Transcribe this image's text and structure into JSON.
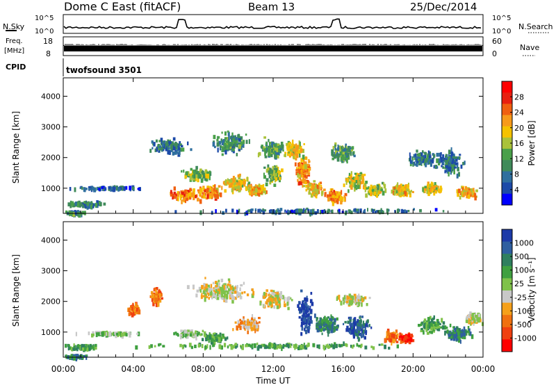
{
  "header": {
    "station": "Dome C East (fitACF)",
    "beam": "Beam 13",
    "date": "25/Dec/2014"
  },
  "panels": {
    "nsky": {
      "label": "N.Sky",
      "ticks": [
        "10^5",
        "10^0"
      ]
    },
    "nsearch": {
      "label": "N.Search",
      "ticks": [
        "10^5",
        "10^0"
      ]
    },
    "freq": {
      "label": "Freq.",
      "unit": "[MHz]",
      "ticks": [
        "18",
        "8"
      ]
    },
    "nave": {
      "label": "Nave",
      "ticks": [
        "60",
        "0"
      ]
    },
    "cpid": {
      "label": "CPID",
      "value": "twofsound 3501"
    }
  },
  "colors": {
    "power": [
      "#0000ff",
      "#1c4aa8",
      "#2f6f9e",
      "#3f8a5a",
      "#4aa04a",
      "#aac23a",
      "#f5c200",
      "#f79a1a",
      "#f06010",
      "#e82010",
      "#ff0000"
    ],
    "velocity": [
      "#ff0000",
      "#f04010",
      "#f07010",
      "#f5a01a",
      "#c8c8c8",
      "#7fc24a",
      "#3fa040",
      "#2f7f5f",
      "#2f5fa0",
      "#1c3aa8"
    ]
  },
  "chart_data": [
    {
      "type": "heatmap",
      "title": "Power",
      "xlabel": "",
      "ylabel": "Slant Range [km]",
      "xlim": [
        0,
        24
      ],
      "ylim": [
        180,
        4600
      ],
      "yticks": [
        "1000",
        "2000",
        "3000",
        "4000"
      ],
      "colorbar": {
        "label": "Power [dB]",
        "ticks": [
          "4",
          "8",
          "12",
          "16",
          "20",
          "24",
          "28"
        ],
        "range": [
          0,
          32
        ]
      },
      "blobs": [
        {
          "t": 1.3,
          "r": 520,
          "dt": 1.3,
          "dr": 110,
          "v": 9
        },
        {
          "t": 0.6,
          "r": 240,
          "dt": 0.7,
          "dr": 70,
          "v": 10
        },
        {
          "t": 2.5,
          "r": 1050,
          "dt": 2.5,
          "dr": 70,
          "v": 6
        },
        {
          "t": 6.9,
          "r": 820,
          "dt": 1.1,
          "dr": 280,
          "v": 23
        },
        {
          "t": 8.3,
          "r": 920,
          "dt": 1.0,
          "dr": 260,
          "v": 22
        },
        {
          "t": 7.6,
          "r": 1500,
          "dt": 1.0,
          "dr": 250,
          "v": 14
        },
        {
          "t": 9.8,
          "r": 1200,
          "dt": 1.1,
          "dr": 350,
          "v": 18
        },
        {
          "t": 11.0,
          "r": 1000,
          "dt": 0.8,
          "dr": 230,
          "v": 20
        },
        {
          "t": 12.0,
          "r": 1500,
          "dt": 0.7,
          "dr": 400,
          "v": 14
        },
        {
          "t": 13.7,
          "r": 1600,
          "dt": 0.6,
          "dr": 600,
          "v": 22
        },
        {
          "t": 14.3,
          "r": 1000,
          "dt": 0.7,
          "dr": 300,
          "v": 20
        },
        {
          "t": 15.5,
          "r": 780,
          "dt": 0.8,
          "dr": 270,
          "v": 22
        },
        {
          "t": 16.7,
          "r": 1300,
          "dt": 0.9,
          "dr": 380,
          "v": 17
        },
        {
          "t": 17.8,
          "r": 1000,
          "dt": 0.8,
          "dr": 250,
          "v": 16
        },
        {
          "t": 19.3,
          "r": 1000,
          "dt": 0.9,
          "dr": 280,
          "v": 19
        },
        {
          "t": 21.0,
          "r": 1050,
          "dt": 0.7,
          "dr": 260,
          "v": 18
        },
        {
          "t": 23.0,
          "r": 900,
          "dt": 0.8,
          "dr": 240,
          "v": 20
        },
        {
          "t": 9.5,
          "r": 2500,
          "dt": 1.4,
          "dr": 420,
          "v": 10
        },
        {
          "t": 11.8,
          "r": 2350,
          "dt": 1.0,
          "dr": 380,
          "v": 12
        },
        {
          "t": 13.2,
          "r": 2300,
          "dt": 0.7,
          "dr": 350,
          "v": 18
        },
        {
          "t": 16.0,
          "r": 2200,
          "dt": 1.0,
          "dr": 400,
          "v": 11
        },
        {
          "t": 6.0,
          "r": 2400,
          "dt": 1.5,
          "dr": 300,
          "v": 8
        },
        {
          "t": 20.5,
          "r": 2000,
          "dt": 1.0,
          "dr": 350,
          "v": 9
        },
        {
          "t": 22.0,
          "r": 1900,
          "dt": 1.0,
          "dr": 500,
          "v": 8
        },
        {
          "t": 14.5,
          "r": 300,
          "dt": 9.0,
          "dr": 90,
          "v": 7
        }
      ]
    },
    {
      "type": "heatmap",
      "title": "Velocity",
      "xlabel": "Time UT",
      "ylabel": "Slant Range [km]",
      "xticks": [
        "00:00",
        "04:00",
        "08:00",
        "12:00",
        "16:00",
        "20:00",
        "00:00"
      ],
      "xlim": [
        0,
        24
      ],
      "ylim": [
        180,
        4600
      ],
      "yticks": [
        "1000",
        "2000",
        "3000",
        "4000"
      ],
      "colorbar": {
        "label": "Velocity [m s⁻¹]",
        "ticks": [
          "1000",
          "500",
          "100",
          "25",
          "-25",
          "-100",
          "-500",
          "-1000"
        ]
      },
      "blobs": [
        {
          "t": 1.0,
          "r": 560,
          "dt": 1.2,
          "dr": 110,
          "v": 6
        },
        {
          "t": 0.7,
          "r": 250,
          "dt": 0.8,
          "dr": 70,
          "v": 7
        },
        {
          "t": 2.6,
          "r": 1000,
          "dt": 2.0,
          "dr": 70,
          "v": 5
        },
        {
          "t": 4.0,
          "r": 1800,
          "dt": 0.4,
          "dr": 250,
          "v": 2
        },
        {
          "t": 5.3,
          "r": 2200,
          "dt": 0.5,
          "dr": 350,
          "v": 2
        },
        {
          "t": 7.2,
          "r": 1000,
          "dt": 1.2,
          "dr": 150,
          "v": 5
        },
        {
          "t": 8.6,
          "r": 850,
          "dt": 1.0,
          "dr": 200,
          "v": 6
        },
        {
          "t": 9.0,
          "r": 2400,
          "dt": 2.2,
          "dr": 450,
          "v": 4
        },
        {
          "t": 12.0,
          "r": 2100,
          "dt": 1.2,
          "dr": 350,
          "v": 4
        },
        {
          "t": 10.5,
          "r": 1300,
          "dt": 1.0,
          "dr": 300,
          "v": 3
        },
        {
          "t": 13.8,
          "r": 1700,
          "dt": 0.5,
          "dr": 800,
          "v": 9
        },
        {
          "t": 15.0,
          "r": 1300,
          "dt": 1.0,
          "dr": 400,
          "v": 7
        },
        {
          "t": 16.8,
          "r": 1200,
          "dt": 1.0,
          "dr": 450,
          "v": 8
        },
        {
          "t": 18.7,
          "r": 900,
          "dt": 0.6,
          "dr": 250,
          "v": 2
        },
        {
          "t": 19.6,
          "r": 850,
          "dt": 0.6,
          "dr": 200,
          "v": 1
        },
        {
          "t": 21.0,
          "r": 1250,
          "dt": 1.0,
          "dr": 350,
          "v": 6
        },
        {
          "t": 22.5,
          "r": 1000,
          "dt": 1.0,
          "dr": 300,
          "v": 7
        },
        {
          "t": 23.4,
          "r": 1500,
          "dt": 0.6,
          "dr": 250,
          "v": 4
        },
        {
          "t": 16.5,
          "r": 2100,
          "dt": 1.2,
          "dr": 250,
          "v": 4
        },
        {
          "t": 12.0,
          "r": 600,
          "dt": 9.0,
          "dr": 100,
          "v": 6
        }
      ]
    }
  ]
}
